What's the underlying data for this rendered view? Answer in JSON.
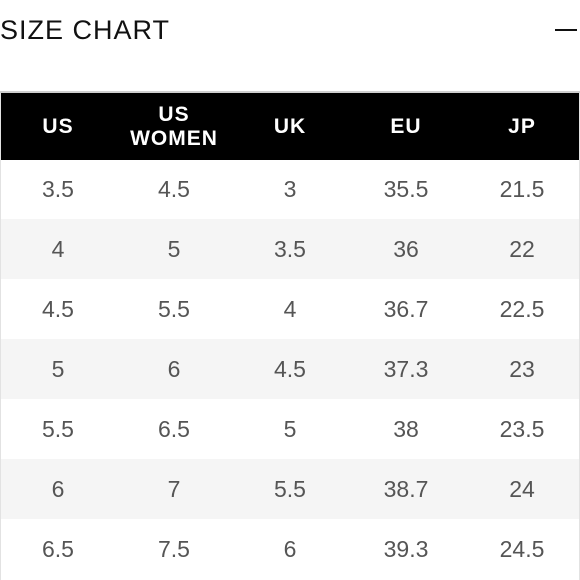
{
  "header": {
    "title": "SIZE CHART",
    "collapse_icon": "minus-icon"
  },
  "table": {
    "columns": [
      {
        "key": "us",
        "label": "US"
      },
      {
        "key": "us_women",
        "label_line1": "US",
        "label_line2": "WOMEN"
      },
      {
        "key": "uk",
        "label": "UK"
      },
      {
        "key": "eu",
        "label": "EU"
      },
      {
        "key": "jp",
        "label": "JP"
      }
    ],
    "rows": [
      [
        "3.5",
        "4.5",
        "3",
        "35.5",
        "21.5"
      ],
      [
        "4",
        "5",
        "3.5",
        "36",
        "22"
      ],
      [
        "4.5",
        "5.5",
        "4",
        "36.7",
        "22.5"
      ],
      [
        "5",
        "6",
        "4.5",
        "37.3",
        "23"
      ],
      [
        "5.5",
        "6.5",
        "5",
        "38",
        "23.5"
      ],
      [
        "6",
        "7",
        "5.5",
        "38.7",
        "24"
      ],
      [
        "6.5",
        "7.5",
        "6",
        "39.3",
        "24.5"
      ]
    ]
  },
  "colors": {
    "header_bg": "#000000",
    "header_text": "#ffffff",
    "cell_text": "#555555",
    "stripe": "#f5f5f5"
  }
}
